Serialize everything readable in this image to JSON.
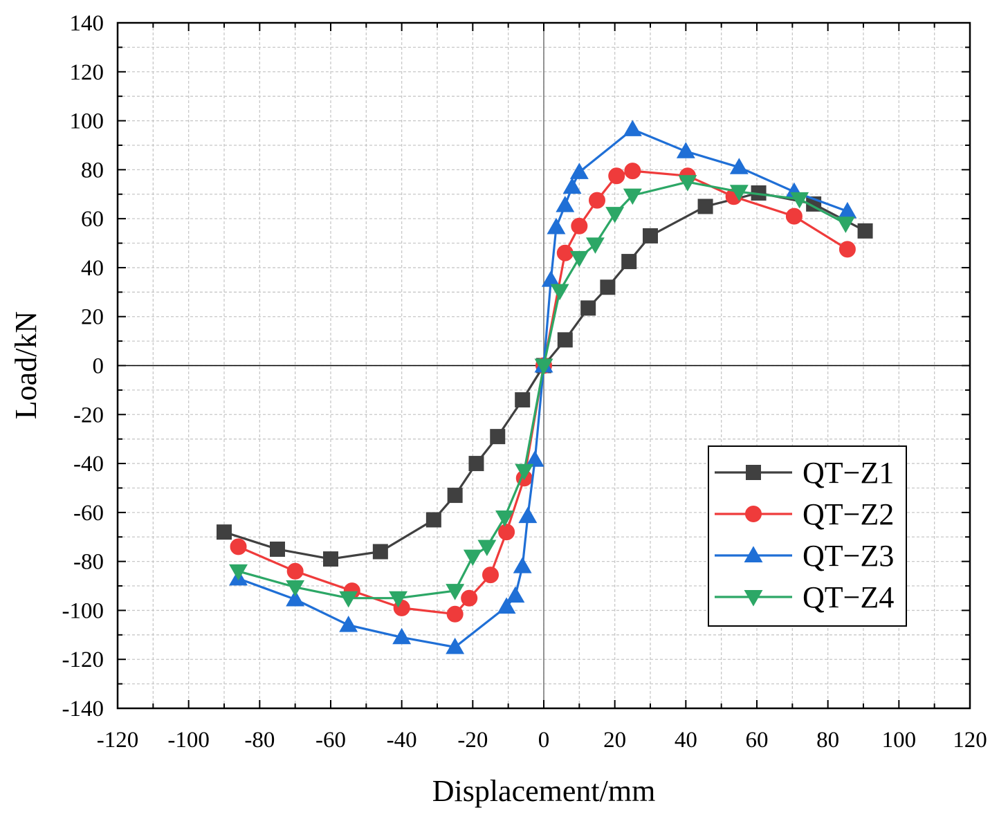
{
  "chart_data": {
    "type": "line",
    "title": "",
    "xlabel": "Displacement/mm",
    "ylabel": "Load/kN",
    "xlim": [
      -120,
      120
    ],
    "ylim": [
      -140,
      140
    ],
    "xticks": [
      -120,
      -100,
      -80,
      -60,
      -40,
      -20,
      0,
      20,
      40,
      60,
      80,
      100,
      120
    ],
    "yticks": [
      -140,
      -120,
      -100,
      -80,
      -60,
      -40,
      -20,
      0,
      20,
      40,
      60,
      80,
      100,
      120,
      140
    ],
    "grid": true,
    "legend_position": "bottom-right",
    "series": [
      {
        "name": "QT−Z1",
        "color": "#404040",
        "marker": "square",
        "points": [
          [
            -90,
            -68
          ],
          [
            -75,
            -75
          ],
          [
            -60,
            -79
          ],
          [
            -46,
            -76
          ],
          [
            -31,
            -63
          ],
          [
            -25,
            -53
          ],
          [
            -19,
            -40
          ],
          [
            -13,
            -29
          ],
          [
            -6,
            -14
          ],
          [
            0,
            0
          ],
          [
            6,
            10.5
          ],
          [
            12.5,
            23.5
          ],
          [
            18,
            32
          ],
          [
            24,
            42.5
          ],
          [
            30,
            53
          ],
          [
            45.5,
            65
          ],
          [
            60.5,
            70.5
          ],
          [
            76,
            66
          ],
          [
            90.5,
            55
          ]
        ]
      },
      {
        "name": "QT−Z2",
        "color": "#ef3b3b",
        "marker": "circle",
        "points": [
          [
            -86,
            -74
          ],
          [
            -70,
            -84
          ],
          [
            -54,
            -92
          ],
          [
            -40,
            -99
          ],
          [
            -25,
            -101.5
          ],
          [
            -21,
            -95
          ],
          [
            -15,
            -85.5
          ],
          [
            -10.5,
            -68
          ],
          [
            -5.5,
            -46
          ],
          [
            0,
            0
          ],
          [
            6,
            46
          ],
          [
            10,
            57
          ],
          [
            15,
            67.5
          ],
          [
            20.5,
            77.5
          ],
          [
            25,
            79.5
          ],
          [
            40.5,
            77.5
          ],
          [
            53.5,
            69
          ],
          [
            70.5,
            61
          ],
          [
            85.5,
            47.5
          ]
        ]
      },
      {
        "name": "QT−Z3",
        "color": "#1f6fd6",
        "marker": "triangle-up",
        "points": [
          [
            -86,
            -87
          ],
          [
            -70,
            -95.5
          ],
          [
            -55,
            -106
          ],
          [
            -40,
            -111
          ],
          [
            -25,
            -115
          ],
          [
            -10.5,
            -98.5
          ],
          [
            -8,
            -94
          ],
          [
            -6,
            -82
          ],
          [
            -4.5,
            -61.5
          ],
          [
            -2.5,
            -38.5
          ],
          [
            0,
            0
          ],
          [
            2,
            35
          ],
          [
            3.5,
            56.5
          ],
          [
            6,
            65.5
          ],
          [
            8,
            73
          ],
          [
            10,
            79
          ],
          [
            25,
            96.5
          ],
          [
            40,
            87.5
          ],
          [
            55,
            81
          ],
          [
            70.5,
            71
          ],
          [
            85.5,
            63
          ]
        ]
      },
      {
        "name": "QT−Z4",
        "color": "#2ca766",
        "marker": "triangle-down",
        "points": [
          [
            -86,
            -84
          ],
          [
            -70,
            -90.5
          ],
          [
            -55,
            -95
          ],
          [
            -41,
            -95
          ],
          [
            -25,
            -92
          ],
          [
            -20,
            -78
          ],
          [
            -16,
            -74
          ],
          [
            -11,
            -62
          ],
          [
            -5.5,
            -43
          ],
          [
            0,
            0
          ],
          [
            4.5,
            30.5
          ],
          [
            10,
            44
          ],
          [
            14.5,
            49.5
          ],
          [
            20,
            62
          ],
          [
            25,
            69.5
          ],
          [
            40.5,
            75
          ],
          [
            55,
            71
          ],
          [
            72,
            68
          ],
          [
            85,
            58
          ]
        ]
      }
    ]
  }
}
